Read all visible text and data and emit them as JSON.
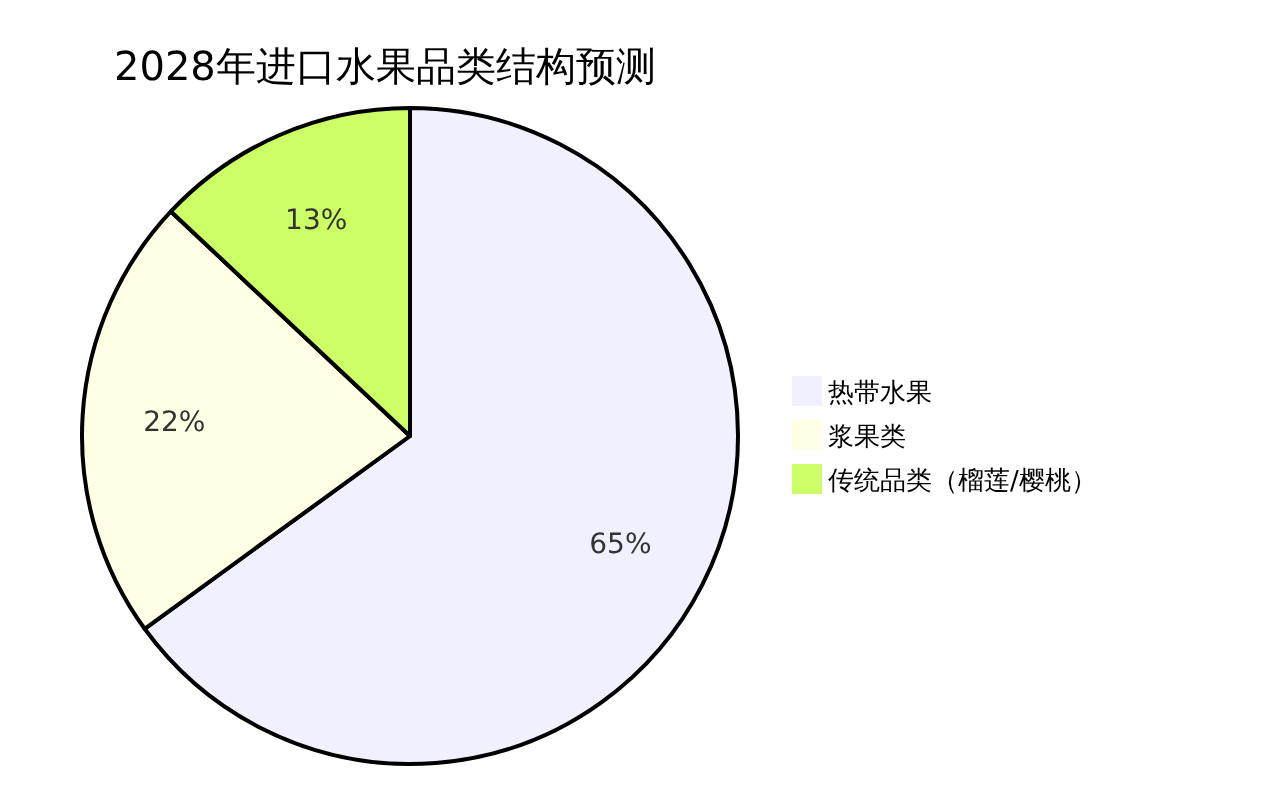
{
  "chart_data": {
    "type": "pie",
    "title": "2028年进口水果品类结构预测",
    "categories": [
      "热带水果",
      "浆果类",
      "传统品类（榴莲/樱桃）"
    ],
    "values": [
      65,
      22,
      13
    ],
    "colors": [
      "#f0f0ff",
      "#ffffe6",
      "#ccff66"
    ],
    "value_labels": [
      "65%",
      "22%",
      "13%"
    ],
    "legend": "right"
  }
}
